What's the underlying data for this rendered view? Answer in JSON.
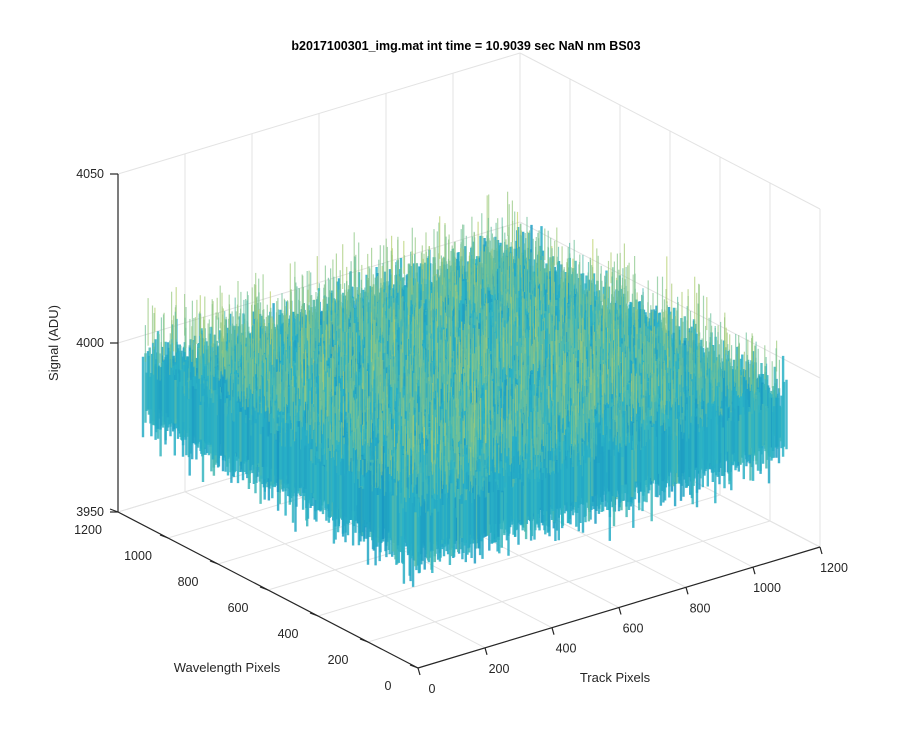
{
  "chart_data": {
    "type": "surface",
    "title": "b2017100301_img.mat int time = 10.9039 sec  NaN nm BS03",
    "xlabel": "Track Pixels",
    "ylabel": "Wavelength Pixels",
    "zlabel": "Signal (ADU)",
    "xlim": [
      0,
      1200
    ],
    "ylim": [
      0,
      1200
    ],
    "zlim": [
      3950,
      4050
    ],
    "xticks": [
      0,
      200,
      400,
      600,
      800,
      1000,
      1200
    ],
    "yticks": [
      0,
      200,
      400,
      600,
      800,
      1000,
      1200
    ],
    "zticks": [
      3950,
      4000,
      4050
    ],
    "grid": true,
    "colormap": "parula",
    "surface": {
      "x_extent": [
        0,
        1100
      ],
      "y_extent": [
        0,
        1100
      ],
      "z_mean": 3990,
      "z_min": 3962,
      "z_max": 4018
    }
  },
  "colors": {
    "grid": "#e3e3e3",
    "axis": "#262626",
    "surface_low": "#0072bd",
    "surface_mid": "#2bb3c6",
    "surface_high": "#e6d84a"
  }
}
